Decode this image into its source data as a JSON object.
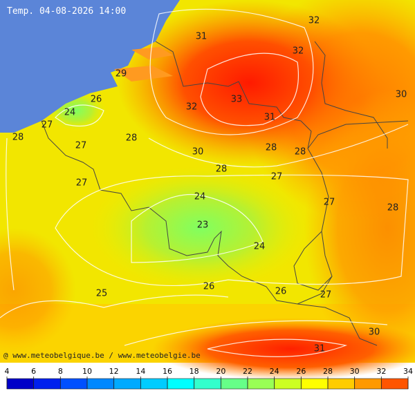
{
  "map": {
    "title": "Temp. 04-08-2026 14:00",
    "credit": "@ www.meteobelgique.be / www.meteobelgie.be",
    "isotherm_labels": [
      32,
      31,
      32,
      29,
      30,
      26,
      33,
      32,
      24,
      31,
      27,
      28,
      28,
      27,
      28,
      28,
      30,
      28,
      27,
      27,
      24,
      27,
      28,
      23,
      24,
      26,
      25,
      26,
      27,
      30,
      31
    ],
    "colorbar": {
      "ticks": [
        4,
        6,
        8,
        10,
        12,
        14,
        16,
        18,
        20,
        22,
        24,
        26,
        28,
        30,
        32,
        34
      ],
      "colors": [
        "#0000c8",
        "#0020ee",
        "#0050ff",
        "#0088ff",
        "#00aaff",
        "#00ccff",
        "#00ffff",
        "#33ffcc",
        "#66ff88",
        "#99ff55",
        "#ccff22",
        "#ffff00",
        "#ffcc00",
        "#ff9900",
        "#ff5500"
      ]
    }
  }
}
